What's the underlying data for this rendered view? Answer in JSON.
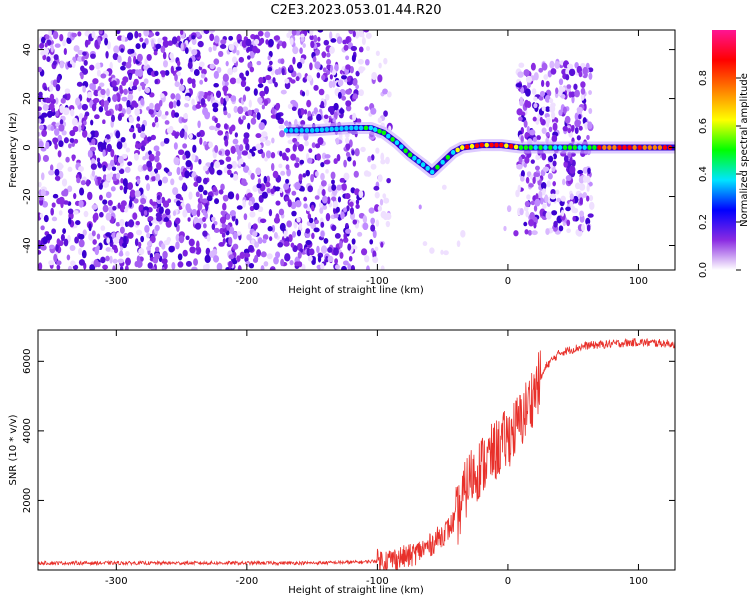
{
  "title": "C2E3.2023.053.01.44.R20",
  "chart_data": [
    {
      "type": "heatmap",
      "xlabel": "Height of straight line (km)",
      "ylabel": "Frequency (Hz)",
      "xlim": [
        -360,
        128
      ],
      "ylim": [
        -50,
        48
      ],
      "x_ticks": [
        -300,
        -200,
        -100,
        0,
        100
      ],
      "y_ticks": [
        -40,
        -20,
        0,
        20,
        40
      ],
      "grid": false,
      "colorbar": {
        "label": "Normalized spectral amplitude",
        "range": [
          0,
          1
        ],
        "ticks": [
          0.0,
          0.2,
          0.4,
          0.6,
          0.8
        ],
        "colors": [
          "#ffffff",
          "#8a2be2",
          "#0000ff",
          "#00e5ff",
          "#00ff00",
          "#ffff00",
          "#ff8000",
          "#ff0000",
          "#ff1493"
        ]
      },
      "tone_track": [
        {
          "x": -170,
          "y": 7
        },
        {
          "x": -150,
          "y": 7
        },
        {
          "x": -120,
          "y": 8
        },
        {
          "x": -105,
          "y": 8
        },
        {
          "x": -95,
          "y": 6
        },
        {
          "x": -85,
          "y": 2
        },
        {
          "x": -75,
          "y": -3
        },
        {
          "x": -65,
          "y": -7
        },
        {
          "x": -58,
          "y": -10
        },
        {
          "x": -50,
          "y": -6
        },
        {
          "x": -42,
          "y": -2
        },
        {
          "x": -35,
          "y": 0
        },
        {
          "x": -20,
          "y": 1
        },
        {
          "x": -5,
          "y": 1
        },
        {
          "x": 10,
          "y": 0
        },
        {
          "x": 40,
          "y": 0
        },
        {
          "x": 70,
          "y": 0
        },
        {
          "x": 128,
          "y": 0
        }
      ]
    },
    {
      "type": "line",
      "xlabel": "Height of straight line (km)",
      "ylabel": "SNR (10 * v/v)",
      "xlim": [
        -360,
        128
      ],
      "ylim": [
        0,
        6900
      ],
      "x_ticks": [
        -300,
        -200,
        -100,
        0,
        100
      ],
      "y_ticks": [
        2000,
        4000,
        6000
      ],
      "grid": false,
      "series": [
        {
          "color": "#e8302a",
          "points": [
            {
              "x": -360,
              "y": 200
            },
            {
              "x": -300,
              "y": 200
            },
            {
              "x": -200,
              "y": 200
            },
            {
              "x": -150,
              "y": 200
            },
            {
              "x": -110,
              "y": 230
            },
            {
              "x": -90,
              "y": 300
            },
            {
              "x": -75,
              "y": 400
            },
            {
              "x": -60,
              "y": 700
            },
            {
              "x": -45,
              "y": 1200
            },
            {
              "x": -38,
              "y": 1600
            },
            {
              "x": -30,
              "y": 2600
            },
            {
              "x": -20,
              "y": 3000
            },
            {
              "x": -10,
              "y": 3400
            },
            {
              "x": 0,
              "y": 3800
            },
            {
              "x": 10,
              "y": 4300
            },
            {
              "x": 20,
              "y": 5100
            },
            {
              "x": 30,
              "y": 5900
            },
            {
              "x": 40,
              "y": 6250
            },
            {
              "x": 60,
              "y": 6450
            },
            {
              "x": 80,
              "y": 6500
            },
            {
              "x": 100,
              "y": 6550
            },
            {
              "x": 128,
              "y": 6500
            }
          ]
        }
      ]
    }
  ]
}
